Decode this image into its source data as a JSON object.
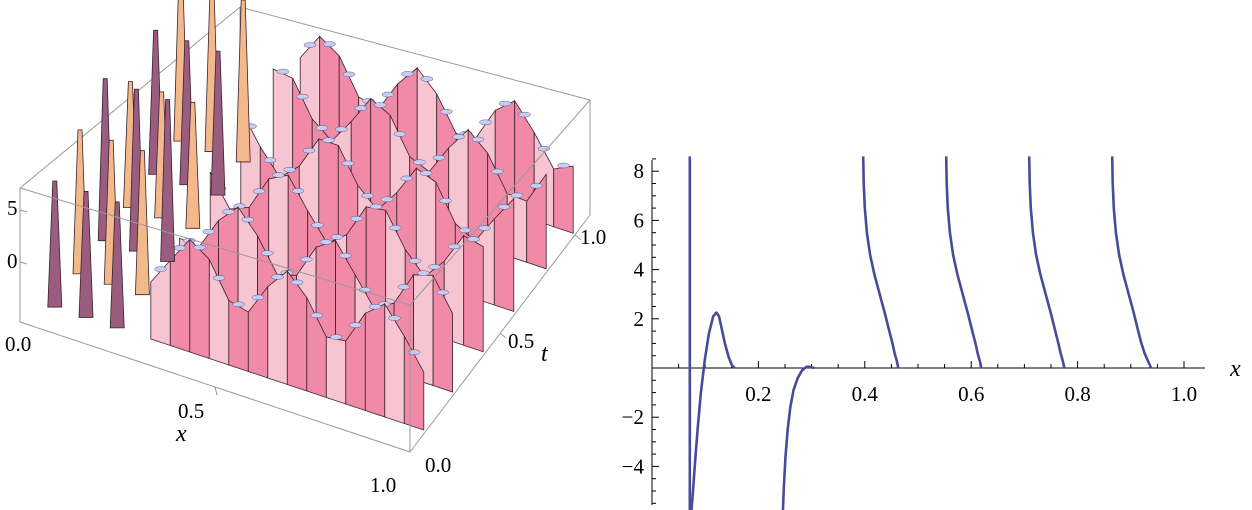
{
  "colors": {
    "surface_pink": "#f08aa6",
    "surface_light": "#f7c4d2",
    "surface_shadow": "#9a5d80",
    "surface_blue": "#c6cdf0",
    "surface_orange": "#f4b98a",
    "curve": "#4a4a9a",
    "axis": "#000000",
    "box": "#9a9a9a"
  },
  "chart_data": [
    {
      "type": "surface3d",
      "title": "",
      "xlabel": "x",
      "ylabel": "t",
      "zlabel": "",
      "x_ticks": [
        "0.0",
        "0.5",
        "1.0"
      ],
      "t_ticks": [
        "0.0",
        "0.5",
        "1.0"
      ],
      "z_ticks": [
        "5",
        "0"
      ],
      "xlim": [
        0,
        1
      ],
      "tlim": [
        0,
        1
      ],
      "zrange": [
        -5,
        8
      ],
      "ridge_count": 6,
      "ridge_t_positions": [
        0.12,
        0.28,
        0.45,
        0.62,
        0.8,
        0.95
      ],
      "box": true
    },
    {
      "type": "line",
      "title": "",
      "xlabel": "x",
      "ylabel": "",
      "xlim": [
        0.0,
        1.0
      ],
      "ylim": [
        -5.8,
        8.6
      ],
      "x_ticks": [
        "0.2",
        "0.4",
        "0.6",
        "0.8",
        "1.0"
      ],
      "x_tick_values": [
        0.2,
        0.4,
        0.6,
        0.8,
        1.0
      ],
      "y_ticks": [
        "8",
        "6",
        "4",
        "2",
        "−2",
        "−4"
      ],
      "y_tick_values": [
        8,
        6,
        4,
        2,
        -2,
        -4
      ],
      "series": [
        {
          "x": [
            0.071,
            0.071,
            0.071,
            0.071
          ],
          "y": [
            8.6,
            4.0,
            0.0,
            -5.8
          ]
        },
        {
          "x": [
            0.074,
            0.077,
            0.081,
            0.086,
            0.092,
            0.099,
            0.107,
            0.115,
            0.121,
            0.126,
            0.131,
            0.137,
            0.144,
            0.15,
            0.155
          ],
          "y": [
            -5.8,
            -5.0,
            -3.8,
            -2.4,
            -1.0,
            0.3,
            1.4,
            2.1,
            2.25,
            2.1,
            1.6,
            1.0,
            0.45,
            0.12,
            0.0
          ]
        },
        {
          "x": [
            0.246,
            0.248,
            0.251,
            0.255,
            0.26,
            0.266,
            0.274,
            0.282,
            0.29,
            0.296,
            0.301,
            0.305
          ],
          "y": [
            -5.8,
            -4.8,
            -3.6,
            -2.5,
            -1.6,
            -0.9,
            -0.4,
            -0.1,
            0.05,
            0.05,
            0.02,
            0.0
          ]
        },
        {
          "x": [
            0.397,
            0.398,
            0.4,
            0.404,
            0.41,
            0.418,
            0.428,
            0.438,
            0.446,
            0.452,
            0.456,
            0.46,
            0.462,
            0.463
          ],
          "y": [
            8.6,
            7.5,
            6.5,
            5.5,
            4.6,
            3.8,
            3.0,
            2.2,
            1.5,
            1.0,
            0.6,
            0.3,
            0.1,
            0.0
          ]
        },
        {
          "x": [
            0.553,
            0.554,
            0.556,
            0.56,
            0.566,
            0.574,
            0.584,
            0.594,
            0.602,
            0.608,
            0.612,
            0.616,
            0.618,
            0.619
          ],
          "y": [
            8.6,
            7.5,
            6.5,
            5.5,
            4.6,
            3.8,
            3.0,
            2.2,
            1.5,
            1.0,
            0.6,
            0.3,
            0.1,
            0.0
          ]
        },
        {
          "x": [
            0.709,
            0.71,
            0.712,
            0.716,
            0.722,
            0.73,
            0.74,
            0.75,
            0.758,
            0.764,
            0.768,
            0.772,
            0.774,
            0.775
          ],
          "y": [
            8.6,
            7.5,
            6.5,
            5.5,
            4.6,
            3.8,
            3.0,
            2.2,
            1.5,
            1.0,
            0.6,
            0.3,
            0.1,
            0.0
          ]
        },
        {
          "x": [
            0.865,
            0.866,
            0.868,
            0.872,
            0.878,
            0.886,
            0.896,
            0.906,
            0.914,
            0.92,
            0.926,
            0.932,
            0.936,
            0.938
          ],
          "y": [
            8.6,
            7.5,
            6.5,
            5.5,
            4.6,
            3.8,
            3.0,
            2.2,
            1.5,
            1.0,
            0.6,
            0.3,
            0.1,
            0.0
          ]
        }
      ]
    }
  ]
}
